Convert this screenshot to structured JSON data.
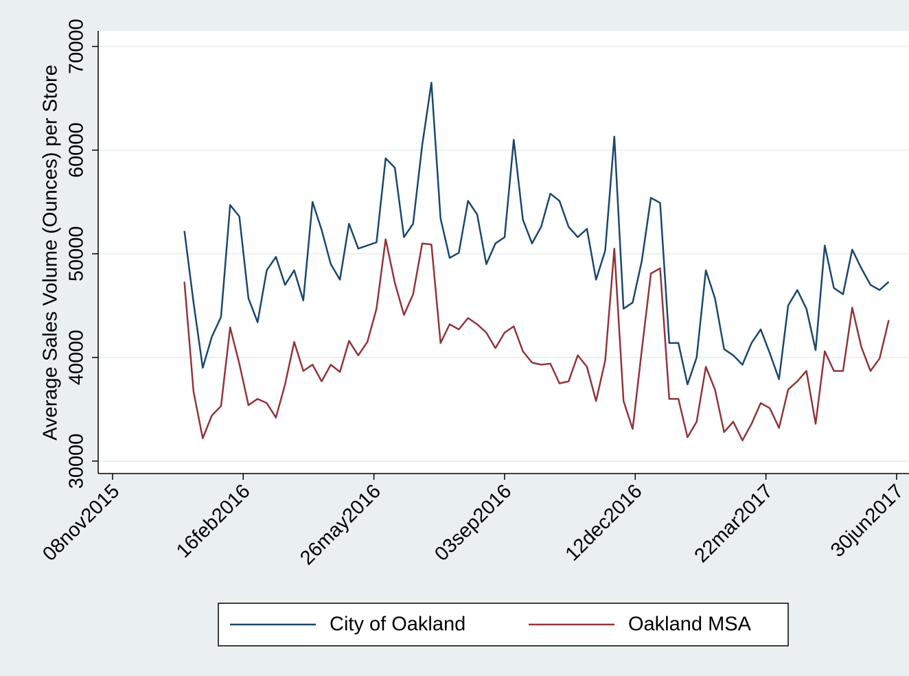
{
  "chart_data": {
    "type": "line",
    "y_label": "Average Sales Volume (Ounces) per Store",
    "x": [
      "2016-01-02",
      "2016-01-09",
      "2016-01-16",
      "2016-01-23",
      "2016-01-30",
      "2016-02-06",
      "2016-02-13",
      "2016-02-20",
      "2016-02-27",
      "2016-03-05",
      "2016-03-12",
      "2016-03-19",
      "2016-03-26",
      "2016-04-02",
      "2016-04-09",
      "2016-04-16",
      "2016-04-23",
      "2016-04-30",
      "2016-05-07",
      "2016-05-14",
      "2016-05-21",
      "2016-05-28",
      "2016-06-04",
      "2016-06-11",
      "2016-06-18",
      "2016-06-25",
      "2016-07-02",
      "2016-07-09",
      "2016-07-16",
      "2016-07-23",
      "2016-07-30",
      "2016-08-06",
      "2016-08-13",
      "2016-08-20",
      "2016-08-27",
      "2016-09-03",
      "2016-09-10",
      "2016-09-17",
      "2016-09-24",
      "2016-10-01",
      "2016-10-08",
      "2016-10-15",
      "2016-10-22",
      "2016-10-29",
      "2016-11-05",
      "2016-11-12",
      "2016-11-19",
      "2016-11-26",
      "2016-12-03",
      "2016-12-10",
      "2016-12-17",
      "2016-12-24",
      "2016-12-31",
      "2017-01-07",
      "2017-01-14",
      "2017-01-21",
      "2017-01-28",
      "2017-02-04",
      "2017-02-11",
      "2017-02-18",
      "2017-02-25",
      "2017-03-04",
      "2017-03-11",
      "2017-03-18",
      "2017-03-25",
      "2017-04-01",
      "2017-04-08",
      "2017-04-15",
      "2017-04-22",
      "2017-04-29",
      "2017-05-06",
      "2017-05-13",
      "2017-05-20",
      "2017-05-27",
      "2017-06-03",
      "2017-06-10",
      "2017-06-17",
      "2017-06-24"
    ],
    "series": [
      {
        "name": "City of Oakland",
        "color": "#1a476f",
        "values": [
          52200,
          45300,
          39000,
          42000,
          43900,
          54700,
          53600,
          45700,
          43400,
          48400,
          49700,
          47000,
          48400,
          45500,
          55000,
          52300,
          49000,
          47500,
          52900,
          50500,
          50800,
          51100,
          59200,
          58300,
          51600,
          52900,
          60500,
          66500,
          53400,
          49600,
          50100,
          55100,
          53800,
          49000,
          51000,
          51600,
          61000,
          53300,
          51000,
          52600,
          55800,
          55100,
          52600,
          51600,
          52400,
          47500,
          50300,
          61300,
          44700,
          45300,
          49300,
          55400,
          54900,
          41400,
          41400,
          37400,
          40000,
          48400,
          45700,
          40800,
          40200,
          39300,
          41400,
          42700,
          40400,
          37900,
          45000,
          46500,
          44700,
          40700,
          50800,
          46700,
          46100,
          50400,
          48600,
          47000,
          46500,
          47300
        ]
      },
      {
        "name": "Oakland MSA",
        "color": "#90353b",
        "values": [
          47300,
          36700,
          32200,
          34400,
          35300,
          42900,
          39400,
          35400,
          36000,
          35600,
          34200,
          37400,
          41500,
          38700,
          39300,
          37700,
          39300,
          38600,
          41600,
          40200,
          41500,
          44700,
          51400,
          47200,
          44100,
          46100,
          51000,
          50900,
          41400,
          43200,
          42700,
          43800,
          43200,
          42400,
          40900,
          42400,
          43000,
          40600,
          39500,
          39300,
          39400,
          37500,
          37700,
          40200,
          39100,
          35800,
          39700,
          50500,
          35800,
          33100,
          40700,
          48100,
          48600,
          36000,
          36000,
          32300,
          33800,
          39100,
          36900,
          32800,
          33800,
          32000,
          33600,
          35600,
          35100,
          33200,
          36900,
          37700,
          38700,
          33600,
          40600,
          38700,
          38700,
          44800,
          41000,
          38700,
          39900,
          43600
        ]
      }
    ],
    "xlim": [
      "2015-10-28",
      "2017-07-10"
    ],
    "xticks": [
      {
        "value": "2015-11-08",
        "label": "08nov2015"
      },
      {
        "value": "2016-02-16",
        "label": "16feb2016"
      },
      {
        "value": "2016-05-26",
        "label": "26may2016"
      },
      {
        "value": "2016-09-03",
        "label": "03sep2016"
      },
      {
        "value": "2016-12-12",
        "label": "12dec2016"
      },
      {
        "value": "2017-03-22",
        "label": "22mar2017"
      },
      {
        "value": "2017-06-30",
        "label": "30jun2017"
      }
    ],
    "ylim": [
      28800,
      71500
    ],
    "yticks": [
      30000,
      40000,
      50000,
      60000,
      70000
    ],
    "grid": true,
    "legend": "bottom"
  }
}
